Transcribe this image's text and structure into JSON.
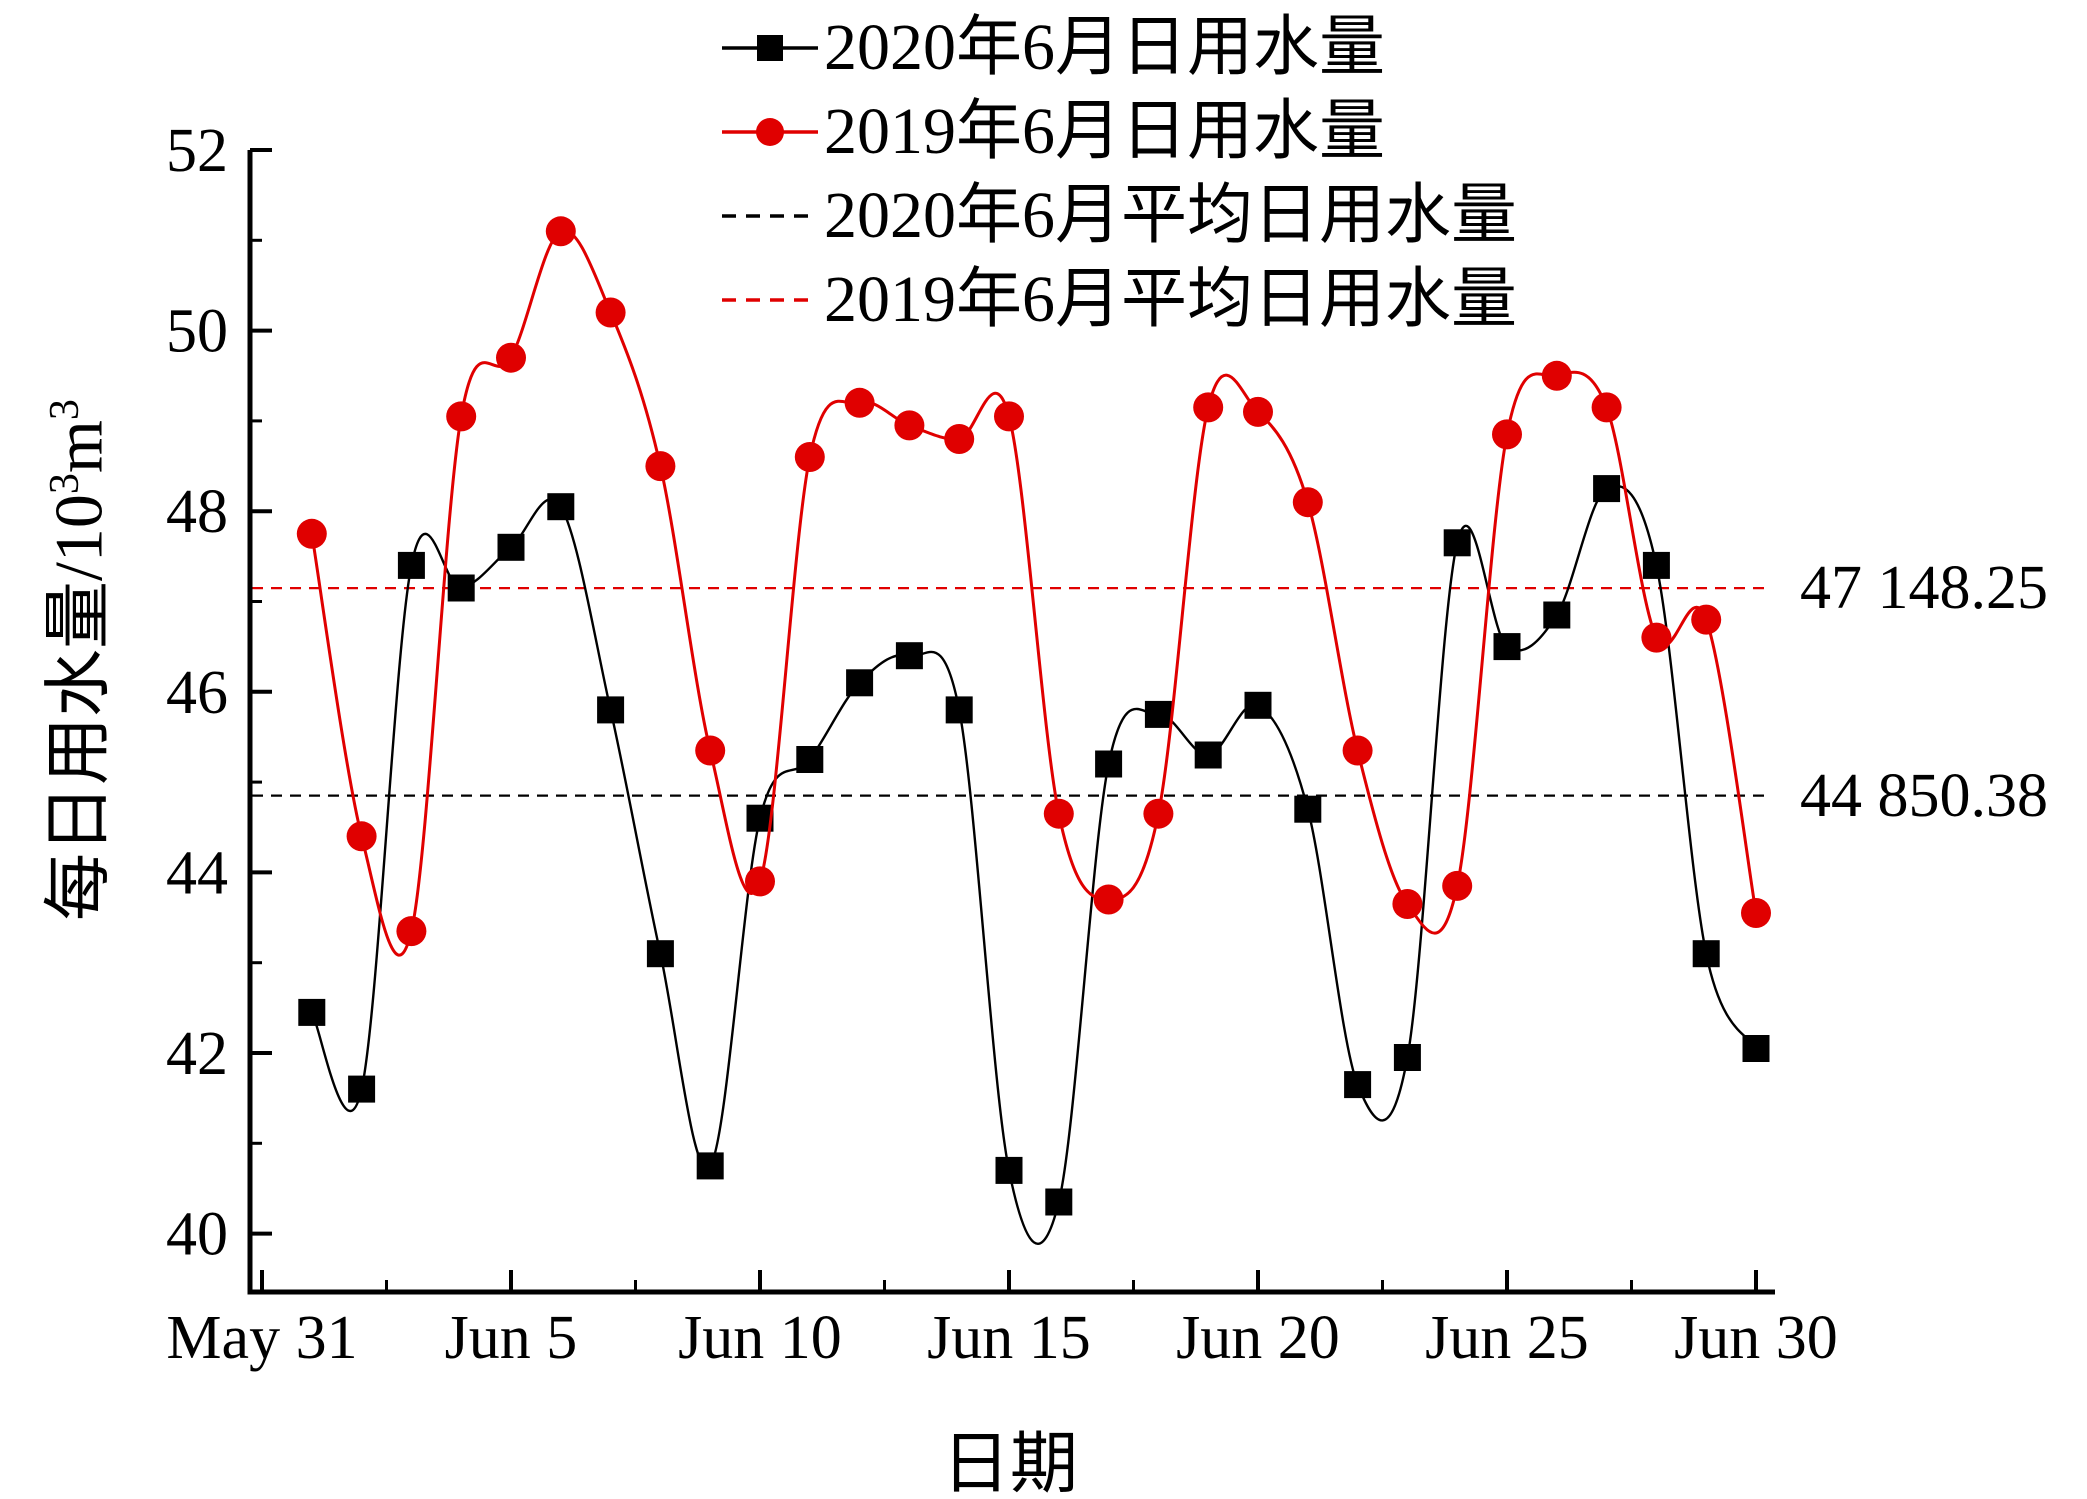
{
  "chart_data": {
    "type": "line",
    "xlabel": "日期",
    "ylabel": "每日用水量/10³m³",
    "ylabel_parts": {
      "prefix": "每日用水量/10",
      "sup1": "3",
      "mid": "m",
      "sup2": "3"
    },
    "x_tick_labels": [
      "May 31",
      "Jun 5",
      "Jun 10",
      "Jun 15",
      "Jun 20",
      "Jun 25",
      "Jun 30"
    ],
    "x_tick_days": [
      0,
      5,
      10,
      15,
      20,
      25,
      30
    ],
    "x_minor_tick_days": [
      2.5,
      7.5,
      12.5,
      17.5,
      22.5,
      27.5
    ],
    "yticks": [
      40,
      42,
      44,
      46,
      48,
      50,
      52
    ],
    "y_minor_ticks": [
      41,
      43,
      45,
      47,
      49,
      51
    ],
    "ylim": [
      39.35,
      52
    ],
    "grid": false,
    "legend_position": "top-center",
    "x_days": [
      1,
      2,
      3,
      4,
      5,
      6,
      7,
      8,
      9,
      10,
      11,
      12,
      13,
      14,
      15,
      16,
      17,
      18,
      19,
      20,
      21,
      22,
      23,
      24,
      25,
      26,
      27,
      28,
      29,
      30
    ],
    "series": [
      {
        "name": "2020年6月日用水量",
        "color": "#000000",
        "marker": "square",
        "line_style": "solid",
        "values": [
          42.45,
          41.6,
          47.4,
          47.15,
          47.6,
          48.05,
          45.8,
          43.1,
          40.75,
          44.6,
          45.25,
          46.1,
          46.4,
          45.8,
          40.7,
          40.35,
          45.2,
          45.75,
          45.3,
          45.85,
          44.7,
          41.65,
          41.95,
          47.65,
          46.5,
          46.85,
          48.25,
          47.4,
          43.1,
          42.05
        ]
      },
      {
        "name": "2019年6月日用水量",
        "color": "#e00000",
        "marker": "circle",
        "line_style": "solid",
        "values": [
          47.75,
          44.4,
          43.35,
          49.05,
          49.7,
          51.1,
          50.2,
          48.5,
          45.35,
          43.9,
          48.6,
          49.2,
          48.95,
          48.8,
          49.05,
          44.65,
          43.7,
          44.65,
          49.15,
          49.1,
          48.1,
          45.35,
          43.65,
          43.85,
          48.85,
          49.5,
          49.15,
          46.6,
          46.8,
          43.55
        ]
      }
    ],
    "avg_lines": [
      {
        "name": "2020年6月平均日用水量",
        "color": "#000000",
        "style": "dashed",
        "value": 44.85038,
        "label": "44 850.38"
      },
      {
        "name": "2019年6月平均日用水量",
        "color": "#e00000",
        "style": "dashed",
        "value": 47.14825,
        "label": "47 148.25"
      }
    ]
  }
}
